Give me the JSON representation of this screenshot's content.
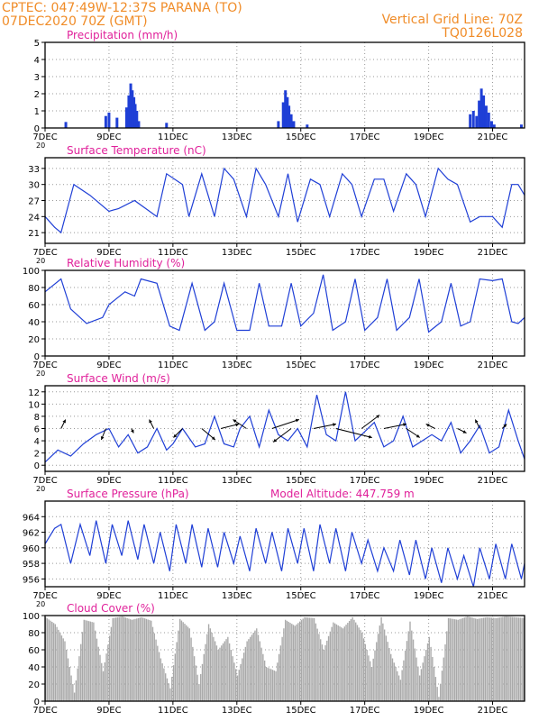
{
  "header": {
    "line1_left": "CPTEC:   047:49W-12:37S   PARANA (TO)",
    "line2_left": "07DEC2020 70Z (GMT)",
    "line1_right": "Vertical Grid Line: 70Z",
    "line2_right": "TQ0126L028"
  },
  "colors": {
    "header": "#f08c28",
    "title": "#e0209a",
    "series": "#1f3fd6",
    "cloud": "#a9a9a9",
    "grid": "#999999"
  },
  "x_axis": {
    "ticks": [
      7,
      9,
      11,
      13,
      15,
      17,
      19,
      21
    ],
    "labels": [
      "7DEC",
      "9DEC",
      "11DEC",
      "13DEC",
      "15DEC",
      "17DEC",
      "19DEC",
      "21DEC"
    ],
    "range_days": [
      7,
      22
    ],
    "year_stub": "20"
  },
  "chart_data": [
    {
      "id": "precip",
      "type": "bar",
      "title": "Precipitation (mm/h)",
      "ylim": [
        0,
        5
      ],
      "yticks": [
        0,
        1,
        2,
        3,
        4,
        5
      ],
      "x": [
        7.65,
        8.9,
        9.0,
        9.25,
        9.55,
        9.62,
        9.68,
        9.73,
        9.78,
        9.82,
        9.87,
        9.93,
        10.8,
        14.3,
        14.45,
        14.52,
        14.58,
        14.63,
        14.7,
        14.78,
        15.2,
        20.3,
        20.4,
        20.5,
        20.58,
        20.65,
        20.72,
        20.8,
        20.88,
        20.97,
        21.05,
        21.9
      ],
      "values": [
        0.35,
        0.7,
        0.9,
        0.6,
        1.2,
        1.9,
        2.6,
        2.2,
        1.8,
        1.4,
        1.0,
        0.4,
        0.3,
        0.4,
        1.5,
        2.2,
        1.8,
        1.3,
        0.8,
        0.4,
        0.2,
        0.8,
        1.0,
        0.7,
        1.6,
        2.3,
        1.9,
        1.3,
        0.9,
        0.4,
        0.2,
        0.2
      ]
    },
    {
      "id": "temp",
      "type": "line",
      "title": "Surface Temperature (nC)",
      "ylim": [
        19,
        35
      ],
      "yticks": [
        21,
        24,
        27,
        30,
        33
      ],
      "x": [
        7.0,
        7.3,
        7.5,
        7.9,
        8.4,
        9.0,
        9.3,
        9.8,
        10.5,
        10.8,
        11.3,
        11.5,
        11.9,
        12.3,
        12.6,
        12.9,
        13.3,
        13.6,
        13.9,
        14.3,
        14.6,
        14.9,
        15.3,
        15.6,
        15.9,
        16.3,
        16.6,
        16.9,
        17.3,
        17.6,
        17.9,
        18.3,
        18.6,
        18.9,
        19.3,
        19.6,
        19.9,
        20.3,
        20.6,
        21.0,
        21.3,
        21.6,
        21.8,
        22.0
      ],
      "values": [
        24.0,
        22.0,
        21.0,
        30.0,
        28.0,
        25.0,
        25.5,
        27.0,
        24.0,
        32.0,
        30.0,
        24.0,
        32.0,
        24.0,
        33.0,
        31.0,
        24.0,
        33.0,
        30.0,
        24.0,
        32.0,
        23.0,
        31.0,
        30.0,
        24.0,
        32.0,
        30.0,
        24.0,
        31.0,
        31.0,
        25.0,
        32.0,
        30.0,
        24.0,
        33.0,
        31.0,
        30.0,
        23.0,
        24.0,
        24.0,
        22.0,
        30.0,
        30.0,
        28.0
      ]
    },
    {
      "id": "rh",
      "type": "line",
      "title": "Relative Humidity (%)",
      "ylim": [
        0,
        100
      ],
      "yticks": [
        0,
        20,
        40,
        60,
        80,
        100
      ],
      "x": [
        7.0,
        7.5,
        7.8,
        8.3,
        8.8,
        9.0,
        9.5,
        9.8,
        10.0,
        10.5,
        10.9,
        11.2,
        11.6,
        12.0,
        12.3,
        12.6,
        13.0,
        13.4,
        13.7,
        14.0,
        14.4,
        14.7,
        15.0,
        15.4,
        15.7,
        16.0,
        16.4,
        16.7,
        17.0,
        17.4,
        17.7,
        18.0,
        18.4,
        18.7,
        19.0,
        19.4,
        19.7,
        20.0,
        20.3,
        20.6,
        21.0,
        21.3,
        21.6,
        21.8,
        22.0
      ],
      "values": [
        75.0,
        90.0,
        55.0,
        38.0,
        45.0,
        60.0,
        75.0,
        70.0,
        90.0,
        85.0,
        35.0,
        30.0,
        85.0,
        30.0,
        40.0,
        85.0,
        30.0,
        30.0,
        85.0,
        35.0,
        35.0,
        85.0,
        35.0,
        50.0,
        95.0,
        30.0,
        40.0,
        90.0,
        30.0,
        45.0,
        90.0,
        30.0,
        45.0,
        90.0,
        28.0,
        40.0,
        85.0,
        35.0,
        40.0,
        90.0,
        88.0,
        90.0,
        40.0,
        38.0,
        45.0
      ]
    },
    {
      "id": "wind",
      "type": "line",
      "title": "Surface Wind (m/s)",
      "ylim": [
        -1,
        13
      ],
      "yticks": [
        0,
        2,
        4,
        6,
        8,
        10,
        12
      ],
      "x": [
        7.0,
        7.4,
        7.8,
        8.2,
        8.6,
        9.0,
        9.3,
        9.6,
        9.9,
        10.2,
        10.5,
        10.8,
        11.0,
        11.3,
        11.7,
        12.0,
        12.3,
        12.6,
        12.9,
        13.1,
        13.4,
        13.7,
        14.0,
        14.3,
        14.6,
        14.9,
        15.2,
        15.5,
        15.8,
        16.1,
        16.4,
        16.7,
        17.0,
        17.3,
        17.6,
        17.9,
        18.2,
        18.5,
        18.8,
        19.1,
        19.4,
        19.7,
        20.0,
        20.3,
        20.6,
        20.9,
        21.2,
        21.5,
        21.8,
        22.0
      ],
      "values": [
        0.5,
        2.5,
        1.5,
        3.5,
        5.0,
        6.0,
        3.0,
        5.0,
        2.0,
        3.0,
        6.0,
        2.5,
        3.5,
        6.0,
        3.0,
        3.5,
        8.0,
        3.5,
        3.0,
        6.0,
        8.0,
        3.0,
        9.0,
        5.0,
        4.0,
        6.0,
        3.0,
        11.5,
        5.0,
        4.0,
        12.0,
        4.0,
        5.5,
        7.0,
        3.0,
        4.0,
        8.0,
        3.0,
        4.0,
        5.0,
        4.0,
        7.0,
        2.0,
        4.0,
        6.5,
        2.0,
        3.0,
        9.0,
        4.0,
        1.0
      ],
      "arrows": {
        "x": [
          7.5,
          8.9,
          9.7,
          10.4,
          11.3,
          11.9,
          12.5,
          13.3,
          14.1,
          14.7,
          15.4,
          16.1,
          16.9,
          17.6,
          18.3,
          19.2,
          19.9,
          20.6,
          21.3
        ],
        "u": [
          1.0,
          -1.0,
          0.5,
          -1.0,
          -2.0,
          3.0,
          4.0,
          -3.0,
          6.0,
          -4.0,
          5.0,
          8.0,
          4.0,
          5.0,
          3.0,
          -2.0,
          2.0,
          -1.0,
          1.0
        ],
        "v": [
          2.0,
          -2.5,
          -1.0,
          2.0,
          -2.0,
          -2.5,
          1.0,
          2.0,
          2.0,
          -3.0,
          1.0,
          -2.0,
          3.0,
          1.0,
          -2.0,
          1.0,
          -1.0,
          2.0,
          1.0
        ]
      }
    },
    {
      "id": "pres",
      "type": "line",
      "title": "Surface Pressure (hPa)",
      "ylim": [
        955,
        966
      ],
      "yticks": [
        956,
        958,
        960,
        962,
        964
      ],
      "x": [
        7.0,
        7.3,
        7.5,
        7.8,
        8.1,
        8.4,
        8.6,
        8.9,
        9.1,
        9.4,
        9.6,
        9.9,
        10.1,
        10.4,
        10.6,
        10.9,
        11.1,
        11.4,
        11.6,
        11.9,
        12.1,
        12.4,
        12.6,
        12.9,
        13.1,
        13.4,
        13.6,
        13.9,
        14.1,
        14.4,
        14.6,
        14.9,
        15.1,
        15.4,
        15.6,
        15.9,
        16.1,
        16.4,
        16.6,
        16.9,
        17.1,
        17.4,
        17.6,
        17.9,
        18.1,
        18.4,
        18.6,
        18.9,
        19.1,
        19.4,
        19.6,
        19.9,
        20.1,
        20.4,
        20.6,
        20.9,
        21.1,
        21.4,
        21.6,
        21.9,
        22.0
      ],
      "values": [
        960.5,
        962.5,
        963.0,
        958.0,
        963.0,
        959.0,
        963.5,
        958.0,
        963.0,
        959.0,
        963.5,
        958.5,
        963.0,
        958.0,
        962.0,
        957.0,
        963.0,
        958.0,
        963.0,
        957.5,
        962.5,
        957.5,
        962.0,
        958.0,
        961.5,
        957.0,
        962.5,
        958.0,
        962.0,
        957.0,
        962.5,
        958.0,
        962.5,
        957.0,
        963.0,
        958.0,
        962.5,
        957.0,
        962.0,
        958.0,
        961.0,
        957.0,
        960.0,
        957.0,
        961.0,
        956.5,
        961.0,
        956.0,
        960.0,
        955.5,
        960.0,
        956.0,
        959.0,
        955.0,
        960.0,
        956.0,
        960.5,
        956.0,
        960.5,
        956.0,
        958.0
      ]
    },
    {
      "id": "cloud",
      "type": "area",
      "title": "Cloud Cover (%)",
      "ylim": [
        0,
        100
      ],
      "yticks": [
        0,
        20,
        40,
        60,
        80,
        100
      ],
      "x": [
        7.0,
        7.3,
        7.6,
        7.9,
        8.2,
        8.5,
        8.8,
        9.1,
        9.4,
        9.7,
        10.0,
        10.3,
        10.6,
        10.9,
        11.2,
        11.5,
        11.8,
        12.1,
        12.4,
        12.7,
        13.0,
        13.3,
        13.6,
        13.9,
        14.2,
        14.5,
        14.8,
        15.1,
        15.4,
        15.7,
        16.0,
        16.3,
        16.6,
        16.9,
        17.2,
        17.5,
        17.8,
        18.1,
        18.4,
        18.7,
        19.0,
        19.3,
        19.6,
        19.9,
        20.2,
        20.5,
        20.8,
        21.1,
        21.4,
        21.7,
        22.0
      ],
      "values": [
        98,
        90,
        70,
        10,
        95,
        92,
        35,
        97,
        99,
        95,
        98,
        94,
        50,
        15,
        96,
        85,
        20,
        90,
        60,
        75,
        30,
        70,
        85,
        40,
        35,
        95,
        88,
        98,
        97,
        60,
        92,
        85,
        98,
        80,
        40,
        98,
        55,
        25,
        93,
        30,
        75,
        5,
        97,
        95,
        99,
        96,
        98,
        97,
        99,
        98,
        97
      ]
    }
  ],
  "model_altitude": "Model Altitude: 447.759 m"
}
